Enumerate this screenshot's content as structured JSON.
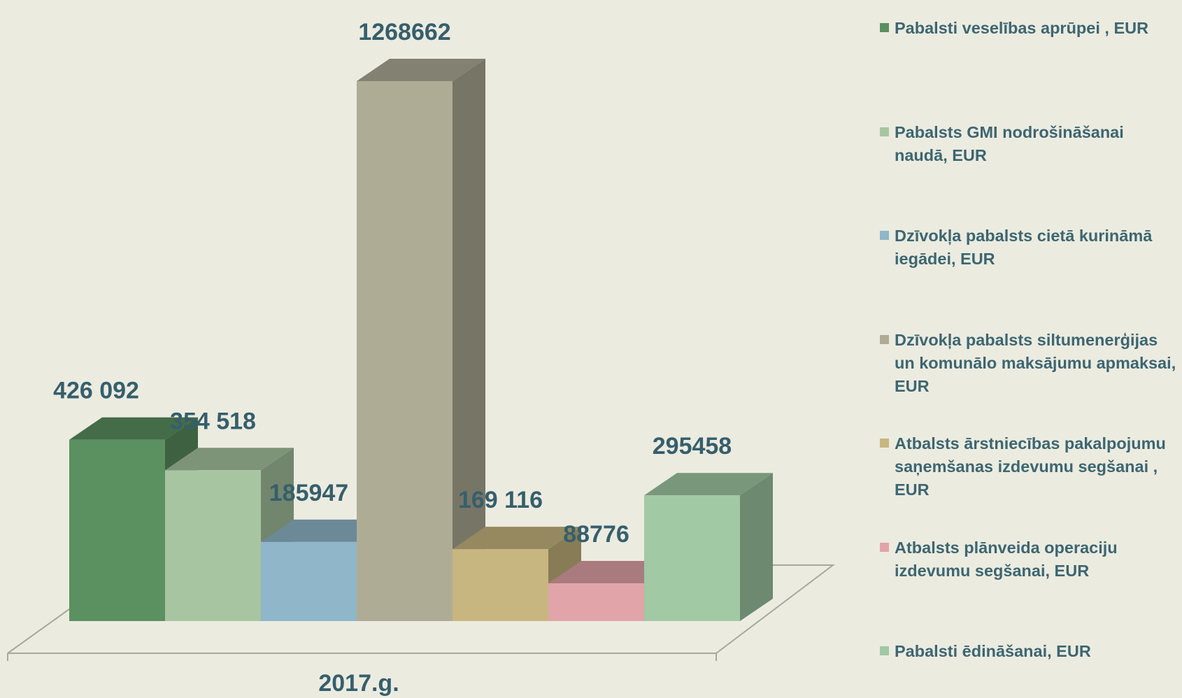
{
  "chart_data": {
    "type": "bar3d",
    "categories": [
      "2017.g."
    ],
    "series": [
      {
        "name": "Pabalsti veselības aprūpei , EUR",
        "color": "#5b9060",
        "values": [
          426092
        ],
        "value_labels": [
          "426 092"
        ]
      },
      {
        "name": "Pabalsts GMI nodrošināšanai naudā, EUR",
        "color": "#a7c5a1",
        "values": [
          354518
        ],
        "value_labels": [
          "354 518"
        ]
      },
      {
        "name": "Dzīvokļa pabalsts cietā kurināmā iegādei, EUR",
        "color": "#8fb6c9",
        "values": [
          185947
        ],
        "value_labels": [
          "185947"
        ]
      },
      {
        "name": "Dzīvokļa pabalsts siltumenerģijas un komunālo maksājumu apmaksai, EUR",
        "color": "#afac96",
        "values": [
          1268662
        ],
        "value_labels": [
          "1268662"
        ]
      },
      {
        "name": "Atbalsts ārstniecības pakalpojumu saņemšanas izdevumu segšanai  , EUR",
        "color": "#c8b680",
        "values": [
          169116
        ],
        "value_labels": [
          "169 116"
        ]
      },
      {
        "name": "Atbalsts plānveida operaciju izdevumu segšanai, EUR",
        "color": "#e1a4a8",
        "values": [
          88776
        ],
        "value_labels": [
          "88776"
        ]
      },
      {
        "name": "Pabalsti ēdināšanai, EUR",
        "color": "#a0c9a4",
        "values": [
          295458
        ],
        "value_labels": [
          "295458"
        ]
      }
    ]
  }
}
